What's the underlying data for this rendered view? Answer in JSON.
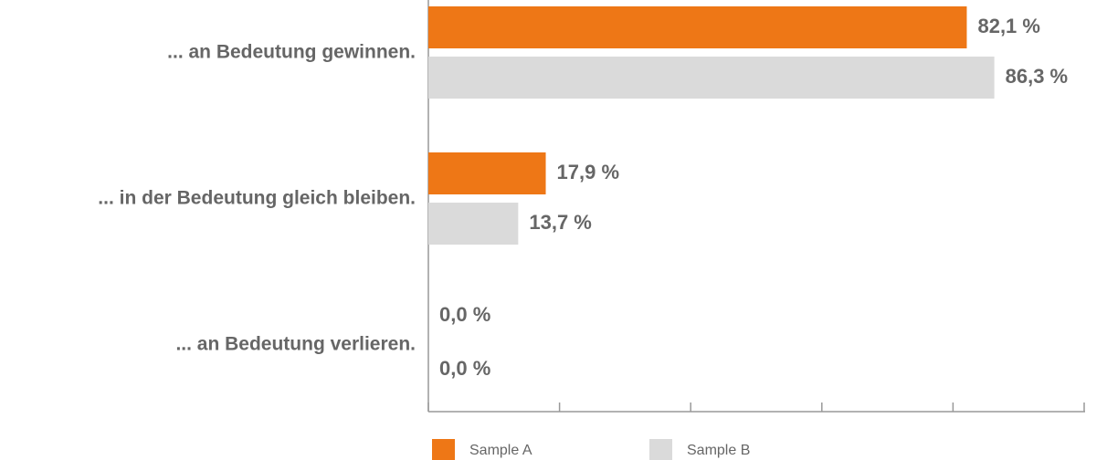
{
  "chart_data": {
    "type": "hbar",
    "categories": [
      "... an Bedeutung gewinnen.",
      "... in der Bedeutung gleich bleiben.",
      "... an Bedeutung verlieren."
    ],
    "series": [
      {
        "name": "Sample A",
        "color": "#ee7716",
        "values": [
          82.1,
          17.9,
          0.0
        ],
        "value_labels": [
          "82,1 %",
          "17,9 %",
          "0,0 %"
        ]
      },
      {
        "name": "Sample B",
        "color": "#dadada",
        "values": [
          86.3,
          13.7,
          0.0
        ],
        "value_labels": [
          "86,3 %",
          "13,7 %",
          "0,0 %"
        ]
      }
    ],
    "xlim": [
      0,
      100
    ],
    "xticks": [
      0,
      20,
      40,
      60,
      80,
      100
    ]
  }
}
